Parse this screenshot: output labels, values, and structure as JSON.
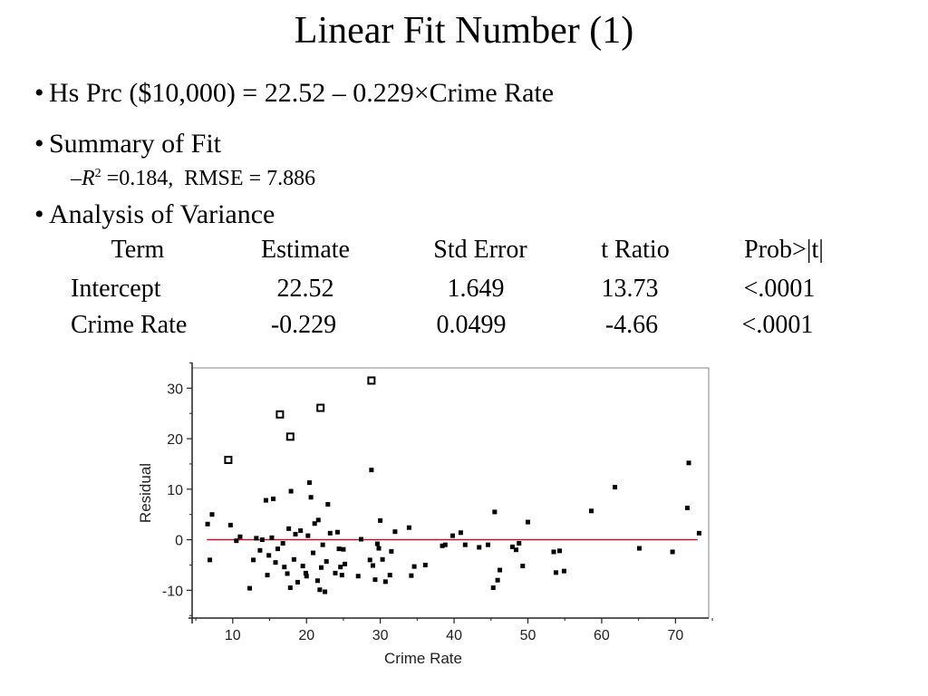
{
  "title": "Linear Fit Number (1)",
  "bullets": {
    "equation": "Hs Prc ($10,000) = 22.52 – 0.229×Crime Rate",
    "summary": "Summary of Fit",
    "fit_prefix": "–",
    "fit_r": "R",
    "fit_sup": "2",
    "fit_rest": " =0.184,  RMSE = 7.886",
    "anova": "Analysis of Variance"
  },
  "anova_table": {
    "headers": [
      "Term",
      "Estimate",
      "Std Error",
      "t Ratio",
      "Prob>|t|"
    ],
    "rows": [
      [
        "Intercept",
        "22.52",
        "1.649",
        "13.73",
        "<.0001"
      ],
      [
        "Crime Rate",
        "-0.229",
        "0.0499",
        "-4.66",
        "<.0001"
      ]
    ]
  },
  "chart_data": {
    "type": "scatter",
    "title": "",
    "xlabel": "Crime Rate",
    "ylabel": "Residual",
    "xlim": [
      5,
      75
    ],
    "ylim": [
      -15,
      35
    ],
    "xticks": [
      10,
      20,
      30,
      40,
      50,
      60,
      70
    ],
    "yticks": [
      -10,
      0,
      10,
      20,
      30
    ],
    "reference_line": {
      "y": 0,
      "x_from": 6.5,
      "x_to": 73,
      "color": "#e0001b"
    },
    "series": [
      {
        "marker": "small-filled-square",
        "points": [
          [
            6.6,
            3.1
          ],
          [
            6.9,
            -4.0
          ],
          [
            7.2,
            5.0
          ],
          [
            9.7,
            2.9
          ],
          [
            10.5,
            -0.2
          ],
          [
            11.0,
            0.6
          ],
          [
            12.3,
            -9.6
          ],
          [
            12.8,
            -4.0
          ],
          [
            13.2,
            0.3
          ],
          [
            13.7,
            -2.1
          ],
          [
            14.0,
            0.0
          ],
          [
            14.5,
            7.8
          ],
          [
            14.7,
            -7.0
          ],
          [
            14.9,
            -3.1
          ],
          [
            15.3,
            0.4
          ],
          [
            15.5,
            8.1
          ],
          [
            15.8,
            -4.5
          ],
          [
            16.1,
            -1.8
          ],
          [
            16.8,
            -0.7
          ],
          [
            17.0,
            -5.4
          ],
          [
            17.4,
            -6.7
          ],
          [
            17.6,
            2.2
          ],
          [
            17.8,
            -9.5
          ],
          [
            17.9,
            9.6
          ],
          [
            18.3,
            -3.9
          ],
          [
            18.5,
            1.1
          ],
          [
            18.8,
            -8.4
          ],
          [
            19.2,
            1.8
          ],
          [
            19.5,
            -5.2
          ],
          [
            19.9,
            -6.6
          ],
          [
            20.0,
            -7.2
          ],
          [
            20.2,
            0.8
          ],
          [
            20.4,
            11.3
          ],
          [
            20.6,
            8.4
          ],
          [
            20.9,
            -2.6
          ],
          [
            21.1,
            3.2
          ],
          [
            21.5,
            -8.1
          ],
          [
            21.6,
            3.9
          ],
          [
            21.8,
            -9.9
          ],
          [
            22.0,
            -5.5
          ],
          [
            22.2,
            -1.0
          ],
          [
            22.5,
            -10.3
          ],
          [
            22.7,
            -4.3
          ],
          [
            22.9,
            7.0
          ],
          [
            23.2,
            1.3
          ],
          [
            23.9,
            -6.6
          ],
          [
            24.2,
            1.5
          ],
          [
            24.4,
            -1.8
          ],
          [
            24.6,
            -5.4
          ],
          [
            24.8,
            -7.0
          ],
          [
            25.0,
            -1.9
          ],
          [
            25.2,
            -4.8
          ],
          [
            27.0,
            -7.2
          ],
          [
            27.4,
            0.1
          ],
          [
            28.6,
            -4.0
          ],
          [
            28.8,
            13.8
          ],
          [
            29.0,
            -5.1
          ],
          [
            29.3,
            -7.9
          ],
          [
            29.6,
            -0.8
          ],
          [
            29.8,
            -1.7
          ],
          [
            30.0,
            3.8
          ],
          [
            30.3,
            -3.9
          ],
          [
            30.7,
            -8.3
          ],
          [
            31.3,
            -7.0
          ],
          [
            31.5,
            -2.3
          ],
          [
            32.0,
            1.6
          ],
          [
            33.9,
            2.4
          ],
          [
            34.2,
            -7.1
          ],
          [
            34.6,
            -5.3
          ],
          [
            36.1,
            -5.0
          ],
          [
            38.4,
            -1.2
          ],
          [
            38.8,
            -1.0
          ],
          [
            39.8,
            0.8
          ],
          [
            40.9,
            1.4
          ],
          [
            41.5,
            -1.0
          ],
          [
            43.4,
            -1.5
          ],
          [
            44.6,
            -1.0
          ],
          [
            45.3,
            -9.5
          ],
          [
            45.5,
            5.5
          ],
          [
            45.9,
            -8.0
          ],
          [
            46.2,
            -6.0
          ],
          [
            47.9,
            -1.4
          ],
          [
            48.4,
            -2.0
          ],
          [
            48.8,
            -0.7
          ],
          [
            49.3,
            -5.2
          ],
          [
            50.0,
            3.5
          ],
          [
            53.5,
            -2.4
          ],
          [
            53.8,
            -6.5
          ],
          [
            54.3,
            -2.2
          ],
          [
            54.9,
            -6.2
          ],
          [
            58.6,
            5.7
          ],
          [
            61.8,
            10.4
          ],
          [
            65.1,
            -1.7
          ],
          [
            69.6,
            -2.4
          ],
          [
            71.6,
            6.3
          ],
          [
            71.8,
            15.2
          ],
          [
            73.2,
            1.3
          ]
        ]
      },
      {
        "marker": "open-square",
        "points": [
          [
            9.4,
            15.8
          ],
          [
            16.4,
            24.8
          ],
          [
            17.8,
            20.4
          ],
          [
            21.9,
            26.1
          ],
          [
            28.8,
            31.5
          ]
        ]
      }
    ]
  }
}
